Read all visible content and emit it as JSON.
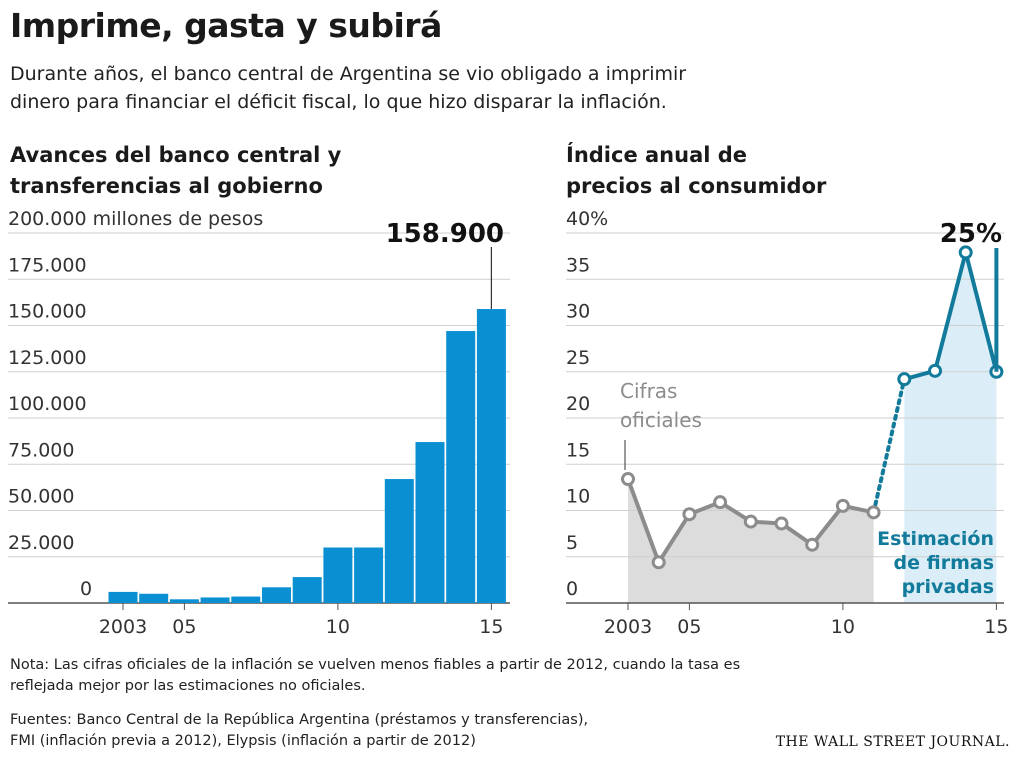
{
  "header": {
    "title": "Imprime, gasta y subirá",
    "subtitle_line1": "Durante años, el banco central de Argentina se vio obligado a imprimir",
    "subtitle_line2": "dinero para financiar el déficit fiscal, lo que hizo disparar la inflación."
  },
  "colors": {
    "bar_blue": "#0b8fd3",
    "line_blue": "#127a9a",
    "official_gray": "#8c8c8c",
    "official_fill": "#dcdcdc",
    "estimate_fill": "#dbeef8",
    "estimate_text": "#127a9a",
    "grid": "#cfcfcf"
  },
  "chart_data": [
    {
      "type": "bar",
      "title_line1": "Avances del banco central y",
      "title_line2": "transferencias al gobierno",
      "unit_label": "millones de pesos",
      "x": [
        2003,
        2004,
        2005,
        2006,
        2007,
        2008,
        2009,
        2010,
        2011,
        2012,
        2013,
        2014,
        2015
      ],
      "values": [
        6000,
        5000,
        2000,
        3000,
        3500,
        8500,
        14000,
        30000,
        30000,
        67000,
        87000,
        147000,
        158900
      ],
      "ylim": [
        0,
        200000
      ],
      "yticks": [
        0,
        25000,
        50000,
        75000,
        100000,
        125000,
        150000,
        175000,
        200000
      ],
      "ytick_labels": [
        "0",
        "25.000",
        "50.000",
        "75.000",
        "100.000",
        "125.000",
        "150.000",
        "175.000",
        "200.000"
      ],
      "xticks": [
        2003,
        2005,
        2010,
        2015
      ],
      "xtick_labels": [
        "2003",
        "05",
        "10",
        "15"
      ],
      "callout_year": 2015,
      "callout_label": "158.900",
      "grid": true
    },
    {
      "type": "line",
      "title_line1": "Índice anual de",
      "title_line2": "precios al consumidor",
      "series": [
        {
          "name": "Cifras oficiales",
          "name_line1": "Cifras",
          "name_line2": "oficiales",
          "x": [
            2003,
            2004,
            2005,
            2006,
            2007,
            2008,
            2009,
            2010,
            2011
          ],
          "y": [
            13.4,
            4.4,
            9.6,
            10.9,
            8.8,
            8.6,
            6.3,
            10.5,
            9.8
          ]
        },
        {
          "name": "Estimación de firmas privadas",
          "name_line1": "Estimación",
          "name_line2": "de firmas",
          "name_line3": "privadas",
          "x": [
            2012,
            2013,
            2014,
            2015
          ],
          "y": [
            24.2,
            25.1,
            37.9,
            25.0
          ]
        }
      ],
      "ylim": [
        0,
        40
      ],
      "yticks": [
        0,
        5,
        10,
        15,
        20,
        25,
        30,
        35,
        40
      ],
      "ytick_labels": [
        "0",
        "5",
        "10",
        "15",
        "20",
        "25",
        "30",
        "35",
        "40%"
      ],
      "xticks": [
        2003,
        2005,
        2010,
        2015
      ],
      "xtick_labels": [
        "2003",
        "05",
        "10",
        "15"
      ],
      "callout_year": 2015,
      "callout_label": "25%",
      "grid": true
    }
  ],
  "footer": {
    "note_line1": "Nota: Las cifras oficiales de la inflación se vuelven menos fiables a partir de 2012, cuando la tasa es",
    "note_line2": "reflejada mejor por las estimaciones no oficiales.",
    "sources_line1": "Fuentes: Banco Central de la República Argentina (préstamos y transferencias),",
    "sources_line2": "FMI (inflación previa a 2012), Elypsis (inflación a partir de 2012)",
    "logo": "THE WALL STREET JOURNAL."
  }
}
